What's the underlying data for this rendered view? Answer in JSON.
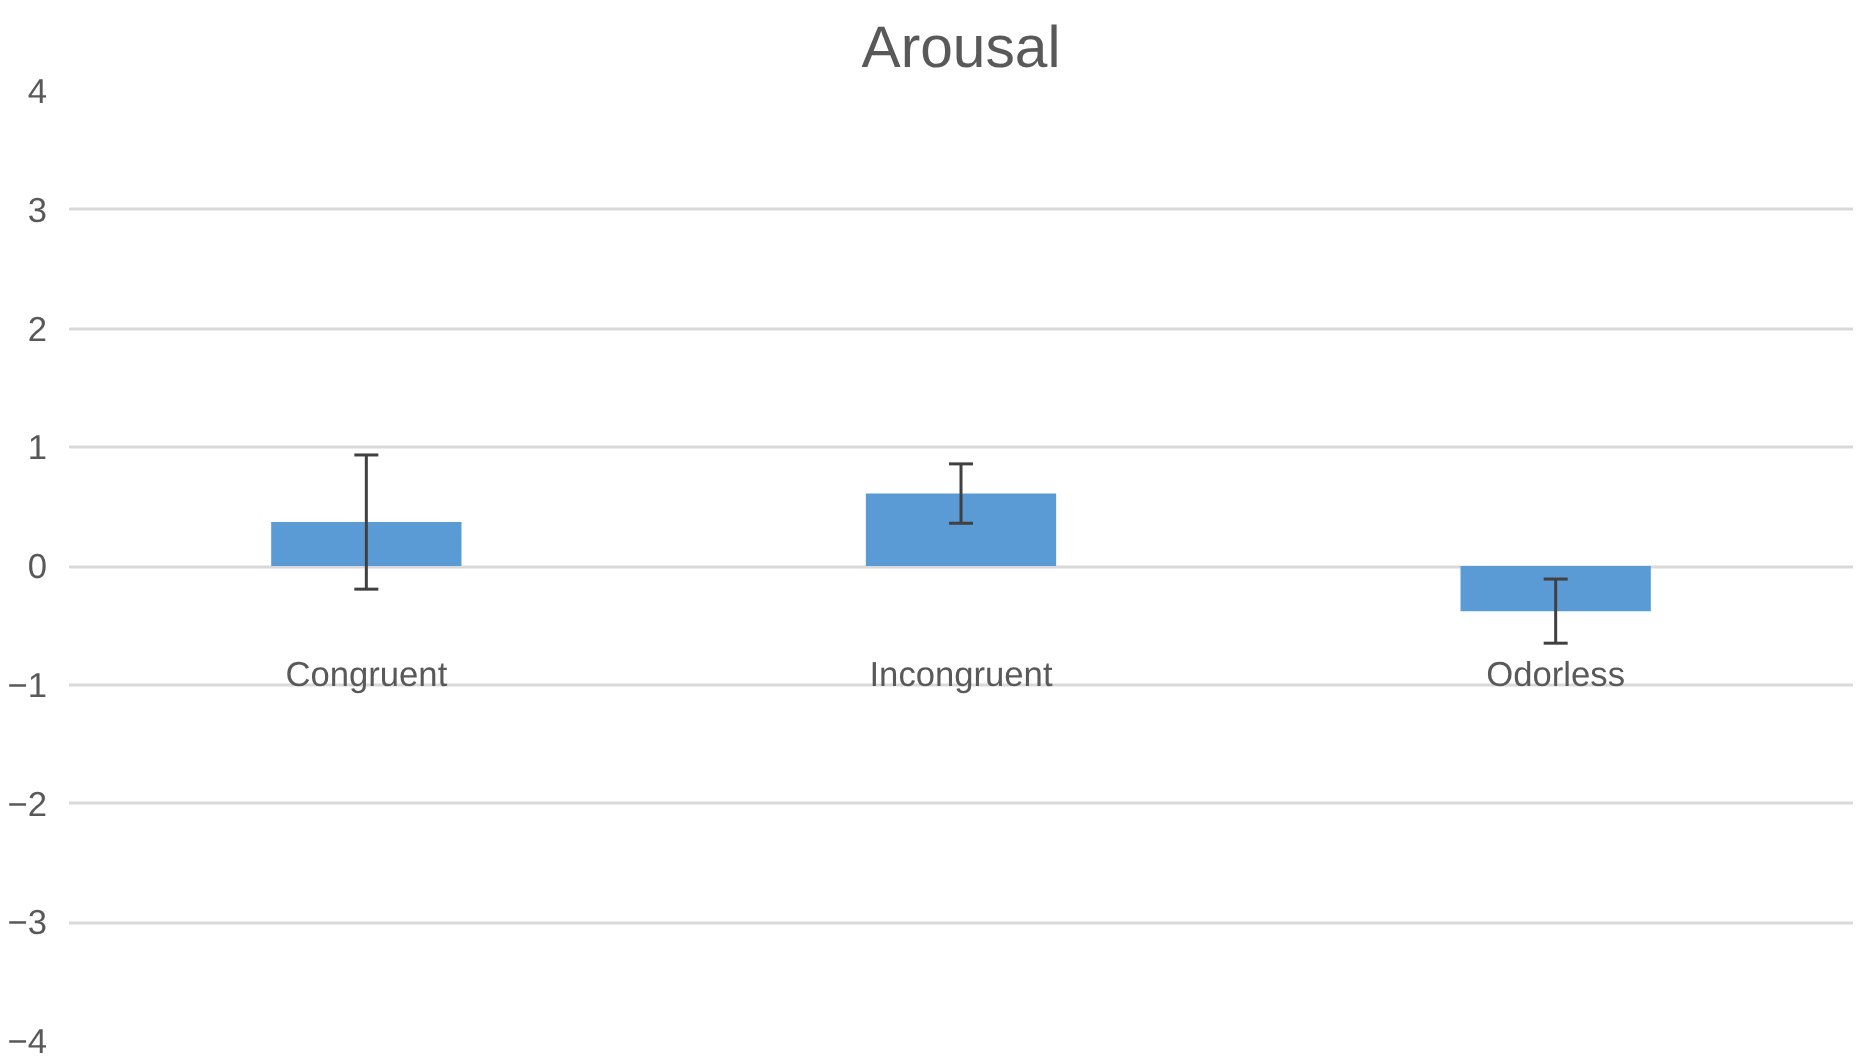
{
  "chart_data": {
    "type": "bar",
    "title": "Arousal",
    "categories": [
      "Congruent",
      "Incongruent",
      "Odorless"
    ],
    "values": [
      0.37,
      0.61,
      -0.38
    ],
    "errors": [
      0.565,
      0.25,
      0.27
    ],
    "color": "#5b9bd5",
    "ylim": [
      -4,
      4
    ],
    "yticks": [
      -4,
      -3,
      -2,
      -1,
      0,
      1,
      2,
      3,
      4
    ],
    "grid": "y"
  }
}
